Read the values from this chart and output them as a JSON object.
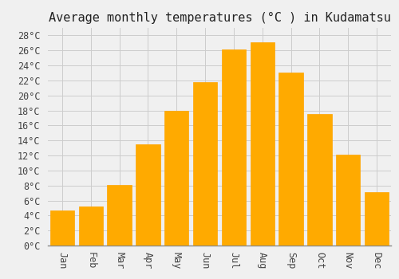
{
  "title": "Average monthly temperatures (°C ) in Kudamatsu",
  "months": [
    "Jan",
    "Feb",
    "Mar",
    "Apr",
    "May",
    "Jun",
    "Jul",
    "Aug",
    "Sep",
    "Oct",
    "Nov",
    "Dec"
  ],
  "temperatures": [
    4.7,
    5.2,
    8.1,
    13.5,
    17.9,
    21.8,
    26.1,
    27.1,
    23.1,
    17.5,
    12.1,
    7.1
  ],
  "bar_color": "#FFAA00",
  "bar_edge_color": "#FFA500",
  "background_color": "#F0F0F0",
  "grid_color": "#CCCCCC",
  "ylim": [
    0,
    29
  ],
  "ytick_step": 2,
  "title_fontsize": 11,
  "tick_fontsize": 8.5,
  "font_family": "monospace"
}
